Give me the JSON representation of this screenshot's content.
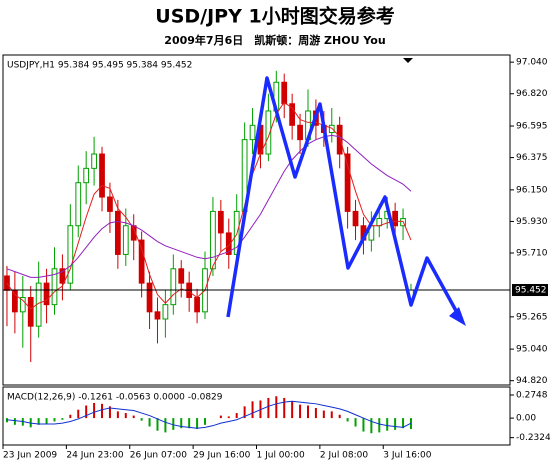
{
  "chart_data": [
    {
      "type": "candlestick",
      "title": "USD/JPY 1小时图交易参考",
      "subtitle": "2009年7月6日　凯斯顿：周游 ZHOU You",
      "info_label": "USDJPY,H1 95.384 95.495 95.384 95.452",
      "xlim": [
        0,
        64
      ],
      "ylim": [
        94.79,
        97.09
      ],
      "yticks": [
        {
          "value": 97.04,
          "label": "97.040"
        },
        {
          "value": 96.82,
          "label": "96.820"
        },
        {
          "value": 96.595,
          "label": "96.595"
        },
        {
          "value": 96.375,
          "label": "96.375"
        },
        {
          "value": 96.15,
          "label": "96.150"
        },
        {
          "value": 95.93,
          "label": "95.930"
        },
        {
          "value": 95.71,
          "label": "95.710"
        },
        {
          "value": 95.265,
          "label": "95.265"
        },
        {
          "value": 95.04,
          "label": "95.040"
        },
        {
          "value": 94.82,
          "label": "94.820"
        }
      ],
      "last_price": 95.452,
      "up_color": "#00a000",
      "down_color": "#d00000",
      "open": [
        95.55,
        95.45,
        95.3,
        95.4,
        95.2,
        95.5,
        95.35,
        95.6,
        95.5,
        95.9,
        96.2,
        96.3,
        96.4,
        96.1,
        96.0,
        95.7,
        95.9,
        95.8,
        95.5,
        95.3,
        95.25,
        95.35,
        95.6,
        95.5,
        95.4,
        95.3,
        95.6,
        96.0,
        95.85,
        95.7,
        96.0,
        96.5,
        96.6,
        96.4,
        96.7,
        96.9,
        96.75,
        96.6,
        96.5,
        96.7,
        96.6,
        96.55,
        96.6,
        96.4,
        96.0,
        95.9,
        95.8,
        95.9,
        95.95,
        96.0,
        95.9,
        95.384
      ],
      "high": [
        95.62,
        95.58,
        95.55,
        95.48,
        95.65,
        95.6,
        95.75,
        95.7,
        96.05,
        96.32,
        96.42,
        96.52,
        96.45,
        96.2,
        96.08,
        96.02,
        95.98,
        95.86,
        95.58,
        95.4,
        95.45,
        95.7,
        95.66,
        95.58,
        95.46,
        95.72,
        96.1,
        96.08,
        95.95,
        96.12,
        96.62,
        96.72,
        96.68,
        96.82,
        96.98,
        96.96,
        96.82,
        96.68,
        96.85,
        96.78,
        96.7,
        96.72,
        96.66,
        96.45,
        96.08,
        95.96,
        96.0,
        96.05,
        96.1,
        96.06,
        96.02,
        95.495
      ],
      "low": [
        95.2,
        95.15,
        95.05,
        94.95,
        95.12,
        95.22,
        95.28,
        95.38,
        95.45,
        95.82,
        96.05,
        96.18,
        96.0,
        95.85,
        95.6,
        95.62,
        95.66,
        95.4,
        95.18,
        95.08,
        95.12,
        95.28,
        95.4,
        95.3,
        95.22,
        95.25,
        95.55,
        95.72,
        95.6,
        95.65,
        95.95,
        96.4,
        96.3,
        96.35,
        96.62,
        96.65,
        96.5,
        96.4,
        96.45,
        96.5,
        96.45,
        96.48,
        96.3,
        95.88,
        95.8,
        95.7,
        95.72,
        95.82,
        95.88,
        95.82,
        95.8,
        95.384
      ],
      "close": [
        95.45,
        95.3,
        95.4,
        95.2,
        95.5,
        95.35,
        95.6,
        95.5,
        95.9,
        96.2,
        96.3,
        96.4,
        96.1,
        96.0,
        95.7,
        95.9,
        95.8,
        95.5,
        95.3,
        95.25,
        95.35,
        95.6,
        95.5,
        95.4,
        95.3,
        95.6,
        96.0,
        95.85,
        95.7,
        96.0,
        96.5,
        96.6,
        96.4,
        96.7,
        96.9,
        96.75,
        96.6,
        96.5,
        96.7,
        96.6,
        96.55,
        96.6,
        96.4,
        96.0,
        95.9,
        95.8,
        95.9,
        95.95,
        96.0,
        95.9,
        95.95,
        95.452
      ],
      "series": [
        {
          "color": "#e02020",
          "values": [
            95.5,
            95.42,
            95.38,
            95.32,
            95.36,
            95.38,
            95.44,
            95.48,
            95.6,
            95.78,
            95.96,
            96.12,
            96.18,
            96.16,
            96.02,
            95.96,
            95.88,
            95.74,
            95.56,
            95.42,
            95.36,
            95.42,
            95.46,
            95.44,
            95.4,
            95.45,
            95.62,
            95.72,
            95.76,
            95.84,
            96.04,
            96.26,
            96.4,
            96.52,
            96.68,
            96.76,
            96.72,
            96.64,
            96.62,
            96.62,
            96.6,
            96.58,
            96.52,
            96.32,
            96.14,
            95.98,
            95.9,
            95.9,
            95.92,
            95.93,
            95.93,
            95.8
          ]
        },
        {
          "color": "#9020c0",
          "values": [
            95.6,
            95.58,
            95.56,
            95.54,
            95.54,
            95.55,
            95.56,
            95.58,
            95.62,
            95.68,
            95.75,
            95.82,
            95.88,
            95.92,
            95.93,
            95.92,
            95.9,
            95.87,
            95.83,
            95.79,
            95.76,
            95.74,
            95.72,
            95.7,
            95.68,
            95.67,
            95.68,
            95.7,
            95.72,
            95.75,
            95.82,
            95.9,
            95.98,
            96.08,
            96.18,
            96.28,
            96.36,
            96.42,
            96.47,
            96.5,
            96.52,
            96.53,
            96.52,
            96.48,
            96.43,
            96.38,
            96.33,
            96.29,
            96.25,
            96.22,
            96.19,
            96.14
          ]
        }
      ]
    },
    {
      "type": "macd",
      "label": "MACD(12,26,9) -0.1261 -0.0563 0.0000 -0.0829",
      "xlim": [
        0,
        64
      ],
      "ylim": [
        -0.32,
        0.37
      ],
      "yticks": [
        0.2748,
        {
          "value": 0,
          "label": "0.00"
        },
        -0.2324
      ],
      "xticks": [
        {
          "value": 0,
          "label": "23 Jun 2009"
        },
        {
          "value": 8,
          "label": "24 Jun 23:00"
        },
        {
          "value": 16,
          "label": "26 Jun 07:00"
        },
        {
          "value": 24,
          "label": "29 Jun 16:00"
        },
        {
          "value": 32,
          "label": "1 Jul 00:00"
        },
        {
          "value": 40,
          "label": "2 Jul 08:00"
        },
        {
          "value": 48,
          "label": "3 Jul 16:00"
        }
      ],
      "pos_color": "#d00000",
      "neg_color": "#00a000",
      "values": [
        -0.05,
        -0.08,
        -0.09,
        -0.11,
        -0.08,
        -0.07,
        -0.04,
        -0.02,
        0.04,
        0.1,
        0.15,
        0.18,
        0.17,
        0.14,
        0.08,
        0.06,
        0.03,
        -0.03,
        -0.1,
        -0.15,
        -0.17,
        -0.14,
        -0.12,
        -0.12,
        -0.13,
        -0.08,
        0.0,
        0.03,
        0.02,
        0.06,
        0.14,
        0.2,
        0.21,
        0.24,
        0.26,
        0.24,
        0.2,
        0.16,
        0.15,
        0.12,
        0.09,
        0.08,
        0.04,
        -0.04,
        -0.1,
        -0.16,
        -0.18,
        -0.17,
        -0.15,
        -0.14,
        -0.12,
        -0.13
      ],
      "series": [
        {
          "color": "#1030d0",
          "values": [
            -0.02,
            -0.03,
            -0.04,
            -0.06,
            -0.07,
            -0.07,
            -0.07,
            -0.06,
            -0.04,
            -0.01,
            0.03,
            0.07,
            0.1,
            0.12,
            0.11,
            0.1,
            0.09,
            0.06,
            0.03,
            -0.01,
            -0.05,
            -0.08,
            -0.1,
            -0.11,
            -0.12,
            -0.11,
            -0.09,
            -0.06,
            -0.04,
            -0.02,
            0.02,
            0.06,
            0.1,
            0.14,
            0.17,
            0.19,
            0.2,
            0.19,
            0.18,
            0.17,
            0.15,
            0.13,
            0.11,
            0.08,
            0.04,
            0.0,
            -0.04,
            -0.07,
            -0.09,
            -0.1,
            -0.11,
            -0.06
          ]
        }
      ]
    }
  ]
}
